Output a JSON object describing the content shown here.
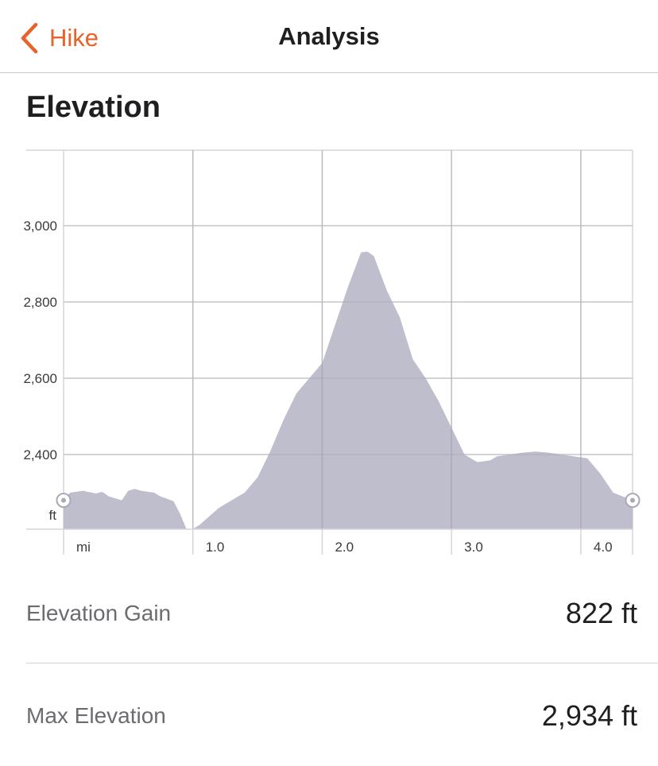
{
  "nav": {
    "back_label": "Hike",
    "title": "Analysis",
    "accent_color": "#e8622a",
    "back_icon": "chevron-left-icon"
  },
  "section": {
    "title": "Elevation"
  },
  "chart_data": {
    "type": "area",
    "title": "Elevation",
    "x_unit_label": "mi",
    "y_unit_label": "ft",
    "x_tick_labels": [
      "1.0",
      "2.0",
      "3.0",
      "4.0"
    ],
    "x_ticks": [
      1.0,
      2.0,
      3.0,
      4.0
    ],
    "y_tick_labels": [
      "2,400",
      "2,600",
      "2,800",
      "3,000"
    ],
    "y_ticks": [
      2400,
      2600,
      2800,
      3000
    ],
    "xlim": [
      0,
      4.4
    ],
    "ylim": [
      2200,
      3200
    ],
    "grid": true,
    "fill_color": "#bcbbc9",
    "x": [
      0,
      0.05,
      0.15,
      0.25,
      0.3,
      0.35,
      0.45,
      0.5,
      0.55,
      0.6,
      0.7,
      0.75,
      0.85,
      0.9,
      0.95,
      1.0,
      1.05,
      1.1,
      1.2,
      1.3,
      1.4,
      1.5,
      1.6,
      1.7,
      1.8,
      1.9,
      2.0,
      2.1,
      2.2,
      2.3,
      2.35,
      2.4,
      2.5,
      2.6,
      2.7,
      2.8,
      2.9,
      3.0,
      3.1,
      3.2,
      3.3,
      3.35,
      3.45,
      3.55,
      3.65,
      3.75,
      3.85,
      3.95,
      4.05,
      4.15,
      4.25,
      4.4
    ],
    "y": [
      2280,
      2300,
      2305,
      2298,
      2302,
      2290,
      2280,
      2305,
      2310,
      2305,
      2300,
      2290,
      2278,
      2245,
      2205,
      2205,
      2215,
      2230,
      2260,
      2280,
      2300,
      2340,
      2410,
      2490,
      2560,
      2600,
      2640,
      2740,
      2840,
      2930,
      2932,
      2920,
      2830,
      2760,
      2650,
      2600,
      2540,
      2470,
      2400,
      2380,
      2385,
      2395,
      2400,
      2405,
      2408,
      2405,
      2400,
      2395,
      2390,
      2350,
      2300,
      2280
    ]
  },
  "stats": [
    {
      "label": "Elevation Gain",
      "value": "822 ft"
    },
    {
      "label": "Max Elevation",
      "value": "2,934 ft"
    }
  ]
}
